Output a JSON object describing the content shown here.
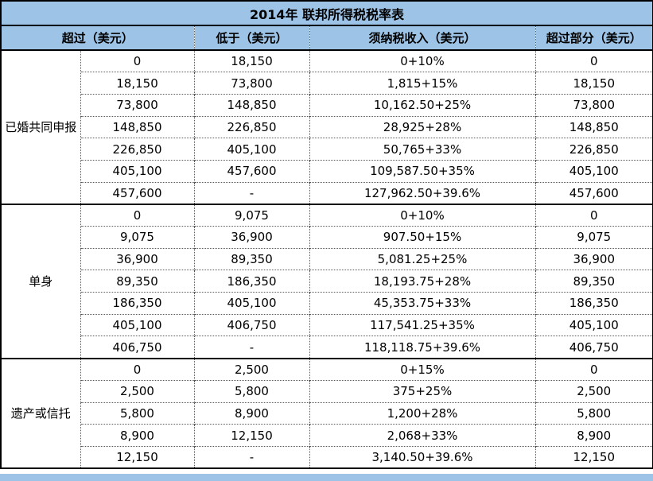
{
  "title": "2014年 联邦所得税税率表",
  "columns": [
    "超过（美元）",
    "低于（美元）",
    "须纳税收入（美元）",
    "超过部分（美元）"
  ],
  "sections": [
    {
      "label": "已婚共同申报",
      "rows": [
        [
          "0",
          "18,150",
          "0+10%",
          "0"
        ],
        [
          "18,150",
          "73,800",
          "1,815+15%",
          "18,150"
        ],
        [
          "73,800",
          "148,850",
          "10,162.50+25%",
          "73,800"
        ],
        [
          "148,850",
          "226,850",
          "28,925+28%",
          "148,850"
        ],
        [
          "226,850",
          "405,100",
          "50,765+33%",
          "226,850"
        ],
        [
          "405,100",
          "457,600",
          "109,587.50+35%",
          "405,100"
        ],
        [
          "457,600",
          "-",
          "127,962.50+39.6%",
          "457,600"
        ]
      ]
    },
    {
      "label": "单身",
      "rows": [
        [
          "0",
          "9,075",
          "0+10%",
          "0"
        ],
        [
          "9,075",
          "36,900",
          "907.50+15%",
          "9,075"
        ],
        [
          "36,900",
          "89,350",
          "5,081.25+25%",
          "36,900"
        ],
        [
          "89,350",
          "186,350",
          "18,193.75+28%",
          "89,350"
        ],
        [
          "186,350",
          "405,100",
          "45,353.75+33%",
          "186,350"
        ],
        [
          "405,100",
          "406,750",
          "117,541.25+35%",
          "405,100"
        ],
        [
          "406,750",
          "-",
          "118,118.75+39.6%",
          "406,750"
        ]
      ]
    },
    {
      "label": "遗产或信托",
      "rows": [
        [
          "0",
          "2,500",
          "0+15%",
          "0"
        ],
        [
          "2,500",
          "5,800",
          "375+25%",
          "2,500"
        ],
        [
          "5,800",
          "8,900",
          "1,200+28%",
          "5,800"
        ],
        [
          "8,900",
          "12,150",
          "2,068+33%",
          "8,900"
        ],
        [
          "12,150",
          "-",
          "3,140.50+39.6%",
          "12,150"
        ]
      ]
    }
  ],
  "colors": {
    "header_fill": "#9DC3E6",
    "footer_strip": "#9DC3E6",
    "text": "#000000",
    "grid_dotted": "#595959",
    "border_solid": "#000000"
  }
}
